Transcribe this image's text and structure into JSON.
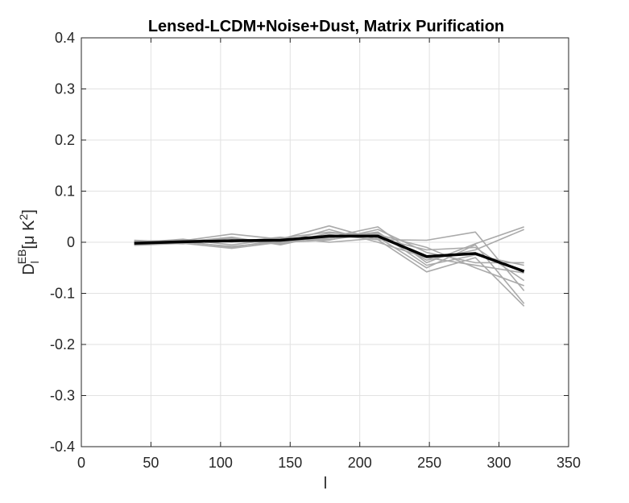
{
  "chart_data": {
    "type": "line",
    "title": "Lensed-LCDM+Noise+Dust, Matrix Purification",
    "xlabel": "l",
    "ylabel": "D_l^{EB}[μ K^2]",
    "xlim": [
      0,
      350
    ],
    "ylim": [
      -0.4,
      0.4
    ],
    "xticks": [
      "0",
      "50",
      "100",
      "150",
      "200",
      "250",
      "300",
      "350"
    ],
    "yticks": [
      "-0.4",
      "-0.3",
      "-0.2",
      "-0.1",
      "0",
      "0.1",
      "0.2",
      "0.3",
      "0.4"
    ],
    "grid": true,
    "x": [
      38,
      73,
      108,
      143,
      178,
      213,
      248,
      283,
      318
    ],
    "series": [
      {
        "values": [
          -0.002,
          0.001,
          0.003,
          0.004,
          0.012,
          0.012,
          -0.028,
          -0.022,
          -0.057
        ],
        "color": "#000000",
        "role": "mean"
      },
      {
        "values": [
          0.002,
          0.003,
          0.016,
          0.006,
          0.032,
          0.005,
          0.004,
          0.02,
          -0.095
        ],
        "color": "#aaaaaa",
        "role": "realization"
      },
      {
        "values": [
          -0.004,
          0.0,
          -0.008,
          0.001,
          0.01,
          0.03,
          -0.04,
          -0.003,
          0.03
        ],
        "color": "#aaaaaa",
        "role": "realization"
      },
      {
        "values": [
          0.001,
          0.004,
          0.002,
          0.008,
          0.02,
          0.01,
          -0.05,
          -0.005,
          -0.12
        ],
        "color": "#aaaaaa",
        "role": "realization"
      },
      {
        "values": [
          -0.006,
          -0.002,
          -0.012,
          0.0,
          0.004,
          0.025,
          -0.02,
          -0.04,
          -0.04
        ],
        "color": "#aaaaaa",
        "role": "realization"
      },
      {
        "values": [
          0.003,
          0.001,
          0.01,
          -0.005,
          0.015,
          0.005,
          -0.058,
          -0.03,
          -0.125
        ],
        "color": "#aaaaaa",
        "role": "realization"
      },
      {
        "values": [
          -0.003,
          0.005,
          0.0,
          0.01,
          0.0,
          0.008,
          -0.015,
          -0.01,
          -0.075
        ],
        "color": "#aaaaaa",
        "role": "realization"
      },
      {
        "values": [
          0.0,
          -0.003,
          0.005,
          -0.002,
          0.025,
          0.0,
          -0.03,
          -0.045,
          -0.06
        ],
        "color": "#aaaaaa",
        "role": "realization"
      },
      {
        "values": [
          -0.005,
          0.002,
          -0.01,
          0.005,
          0.008,
          0.02,
          -0.045,
          -0.025,
          -0.045
        ],
        "color": "#aaaaaa",
        "role": "realization"
      },
      {
        "values": [
          0.004,
          0.0,
          0.008,
          -0.003,
          0.018,
          0.015,
          -0.01,
          -0.05,
          -0.085
        ],
        "color": "#aaaaaa",
        "role": "realization"
      },
      {
        "values": [
          -0.001,
          0.006,
          -0.005,
          0.007,
          0.005,
          0.018,
          -0.035,
          -0.015,
          0.025
        ],
        "color": "#aaaaaa",
        "role": "realization"
      }
    ]
  }
}
